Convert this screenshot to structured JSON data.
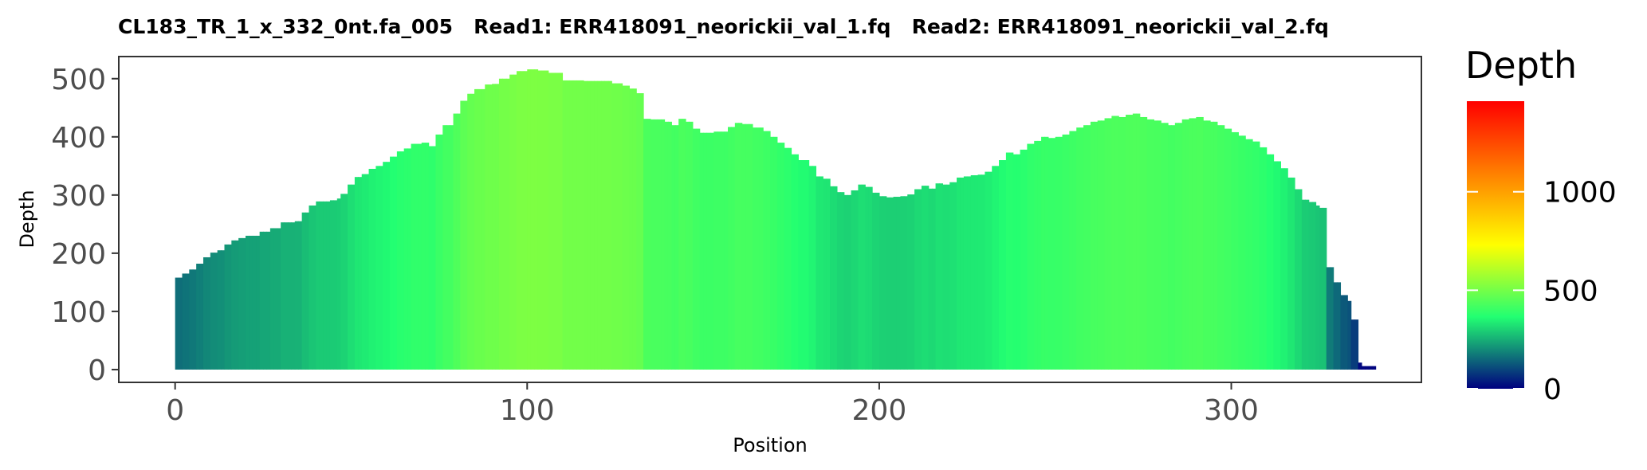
{
  "chart_data": {
    "type": "bar",
    "title": "CL183_TR_1_x_332_0nt.fa_005   Read1: ERR418091_neorickii_val_1.fq   Read2: ERR418091_neorickii_val_2.fq",
    "xlabel": "Position",
    "ylabel": "Depth",
    "xlim": [
      -16,
      354
    ],
    "ylim": [
      -22,
      538
    ],
    "xticks": [
      "0",
      "100",
      "200",
      "300"
    ],
    "yticks": [
      "0",
      "100",
      "200",
      "300",
      "400",
      "500"
    ],
    "grid": false,
    "depth_profile": [
      [
        0,
        158
      ],
      [
        2,
        165
      ],
      [
        4,
        172
      ],
      [
        6,
        182
      ],
      [
        8,
        193
      ],
      [
        10,
        201
      ],
      [
        12,
        205
      ],
      [
        14,
        215
      ],
      [
        16,
        222
      ],
      [
        18,
        226
      ],
      [
        20,
        230
      ],
      [
        24,
        237
      ],
      [
        27,
        243
      ],
      [
        30,
        253
      ],
      [
        34,
        255
      ],
      [
        36,
        270
      ],
      [
        38,
        282
      ],
      [
        40,
        289
      ],
      [
        44,
        291
      ],
      [
        46,
        294
      ],
      [
        47,
        302
      ],
      [
        49,
        318
      ],
      [
        51,
        331
      ],
      [
        53,
        336
      ],
      [
        55,
        345
      ],
      [
        57,
        350
      ],
      [
        59,
        357
      ],
      [
        61,
        366
      ],
      [
        63,
        375
      ],
      [
        65,
        380
      ],
      [
        67,
        388
      ],
      [
        70,
        390
      ],
      [
        72,
        384
      ],
      [
        74,
        404
      ],
      [
        76,
        420
      ],
      [
        78,
        420
      ],
      [
        79,
        440
      ],
      [
        81,
        462
      ],
      [
        83,
        474
      ],
      [
        85,
        482
      ],
      [
        88,
        490
      ],
      [
        90,
        491
      ],
      [
        92,
        500
      ],
      [
        95,
        507
      ],
      [
        97,
        513
      ],
      [
        100,
        516
      ],
      [
        103,
        514
      ],
      [
        106,
        510
      ],
      [
        110,
        497
      ],
      [
        116,
        496
      ],
      [
        120,
        496
      ],
      [
        124,
        492
      ],
      [
        127,
        488
      ],
      [
        129,
        483
      ],
      [
        131,
        475
      ],
      [
        133,
        431
      ],
      [
        135,
        430
      ],
      [
        139,
        426
      ],
      [
        141,
        420
      ],
      [
        143,
        431
      ],
      [
        145,
        426
      ],
      [
        147,
        414
      ],
      [
        149,
        407
      ],
      [
        153,
        409
      ],
      [
        157,
        417
      ],
      [
        159,
        424
      ],
      [
        161,
        422
      ],
      [
        164,
        416
      ],
      [
        167,
        410
      ],
      [
        169,
        400
      ],
      [
        171,
        390
      ],
      [
        173,
        381
      ],
      [
        175,
        370
      ],
      [
        177,
        360
      ],
      [
        180,
        350
      ],
      [
        182,
        332
      ],
      [
        184,
        328
      ],
      [
        186,
        315
      ],
      [
        188,
        305
      ],
      [
        190,
        300
      ],
      [
        192,
        308
      ],
      [
        194,
        318
      ],
      [
        196,
        314
      ],
      [
        198,
        304
      ],
      [
        200,
        298
      ],
      [
        202,
        296
      ],
      [
        204,
        297
      ],
      [
        206,
        298
      ],
      [
        208,
        301
      ],
      [
        210,
        310
      ],
      [
        212,
        316
      ],
      [
        214,
        311
      ],
      [
        216,
        320
      ],
      [
        218,
        318
      ],
      [
        220,
        322
      ],
      [
        222,
        330
      ],
      [
        224,
        332
      ],
      [
        226,
        334
      ],
      [
        228,
        335
      ],
      [
        230,
        340
      ],
      [
        232,
        350
      ],
      [
        234,
        360
      ],
      [
        236,
        373
      ],
      [
        238,
        370
      ],
      [
        240,
        378
      ],
      [
        242,
        388
      ],
      [
        244,
        393
      ],
      [
        246,
        400
      ],
      [
        248,
        398
      ],
      [
        250,
        400
      ],
      [
        252,
        404
      ],
      [
        254,
        410
      ],
      [
        256,
        416
      ],
      [
        258,
        420
      ],
      [
        260,
        426
      ],
      [
        262,
        428
      ],
      [
        264,
        432
      ],
      [
        266,
        436
      ],
      [
        268,
        434
      ],
      [
        270,
        438
      ],
      [
        272,
        440
      ],
      [
        274,
        434
      ],
      [
        276,
        430
      ],
      [
        278,
        428
      ],
      [
        280,
        424
      ],
      [
        282,
        420
      ],
      [
        284,
        424
      ],
      [
        286,
        430
      ],
      [
        288,
        432
      ],
      [
        290,
        434
      ],
      [
        292,
        428
      ],
      [
        294,
        426
      ],
      [
        296,
        420
      ],
      [
        298,
        414
      ],
      [
        300,
        408
      ],
      [
        302,
        402
      ],
      [
        304,
        396
      ],
      [
        306,
        392
      ],
      [
        308,
        382
      ],
      [
        310,
        370
      ],
      [
        312,
        358
      ],
      [
        314,
        346
      ],
      [
        316,
        330
      ],
      [
        318,
        310
      ],
      [
        320,
        292
      ],
      [
        322,
        288
      ],
      [
        324,
        282
      ],
      [
        325,
        278
      ],
      [
        327,
        176
      ],
      [
        329,
        150
      ],
      [
        331,
        128
      ],
      [
        333,
        118
      ],
      [
        334,
        86
      ],
      [
        336,
        12
      ],
      [
        337,
        6
      ],
      [
        340,
        6
      ]
    ],
    "x_end": 341
  },
  "legend": {
    "title": "Depth",
    "labels": [
      "0",
      "500",
      "1000"
    ],
    "values": [
      0,
      500,
      1000
    ],
    "range": [
      0,
      1460
    ],
    "colors": [
      "#00007f",
      "#22ff72",
      "#ffff00",
      "#ff7f00",
      "#ff0000"
    ]
  }
}
